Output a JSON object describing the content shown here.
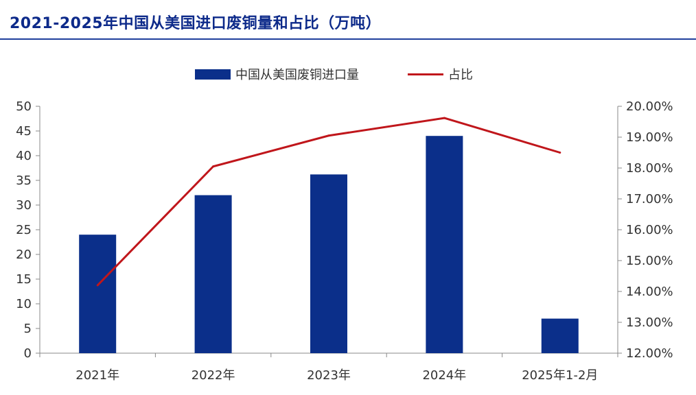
{
  "title": "2021-2025年中国从美国进口废铜量和占比（万吨）",
  "colors": {
    "bar": "#0b2f8a",
    "line": "#c0161b",
    "title": "#0d2a8a",
    "axis": "#888888"
  },
  "chart_data": {
    "type": "bar",
    "title": "2021-2025年中国从美国进口废铜量和占比（万吨）",
    "categories": [
      "2021年",
      "2022年",
      "2023年",
      "2024年",
      "2025年1-2月"
    ],
    "series": [
      {
        "name": "中国从美国废铜进口量",
        "type": "bar",
        "axis": "left",
        "values": [
          24,
          32,
          36.2,
          44,
          7
        ]
      },
      {
        "name": "占比",
        "type": "line",
        "axis": "right",
        "values": [
          14.2,
          18.05,
          19.05,
          19.62,
          18.5
        ]
      }
    ],
    "ylim": [
      0,
      50
    ],
    "y_ticks": [
      "0",
      "5",
      "10",
      "15",
      "20",
      "25",
      "30",
      "35",
      "40",
      "45",
      "50"
    ],
    "y2lim": [
      12,
      20
    ],
    "y2_ticks": [
      "12.00%",
      "13.00%",
      "14.00%",
      "15.00%",
      "16.00%",
      "17.00%",
      "18.00%",
      "19.00%",
      "20.00%"
    ],
    "legend": {
      "position": "top",
      "items": [
        "中国从美国废铜进口量",
        "占比"
      ]
    },
    "grid": false
  }
}
